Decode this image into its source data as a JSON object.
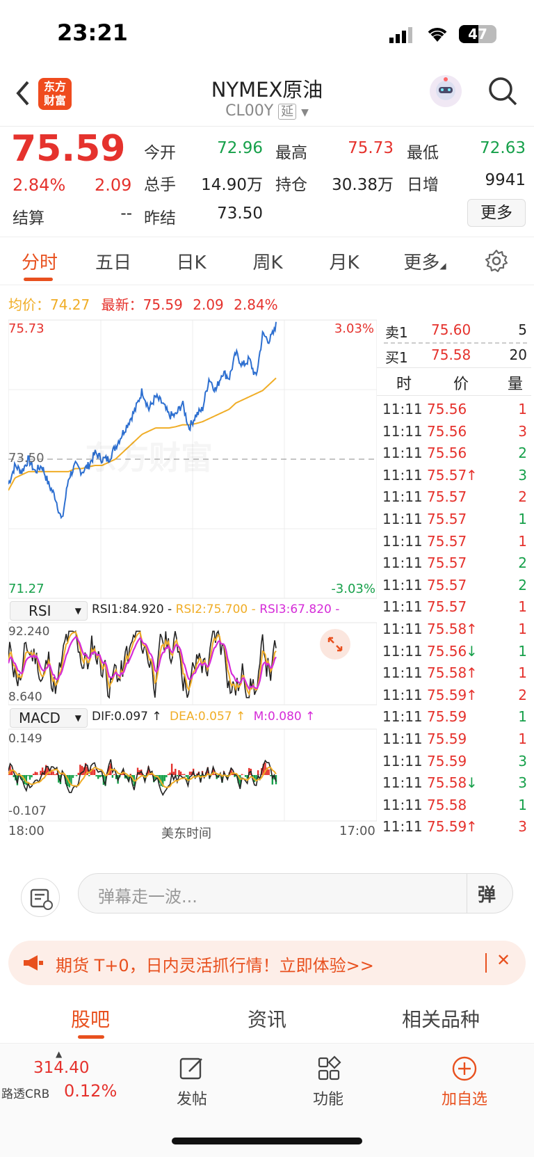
{
  "status": {
    "time": "23:21",
    "battery": "47"
  },
  "header": {
    "logo_line1": "东方",
    "logo_line2": "财富",
    "title": "NYMEX原油",
    "code": "CL00Y",
    "delay_badge": "延"
  },
  "quote": {
    "price": "75.59",
    "change_pct": "2.84%",
    "change": "2.09",
    "open_label": "今开",
    "open": "72.96",
    "high_label": "最高",
    "high": "75.73",
    "low_label": "最低",
    "low": "72.63",
    "volume_label": "总手",
    "volume": "14.90万",
    "oi_label": "持仓",
    "oi": "30.38万",
    "daily_inc_label": "日增",
    "daily_inc": "9941",
    "settle_label": "结算",
    "settle": "--",
    "prev_settle_label": "昨结",
    "prev_settle": "73.50",
    "more_btn": "更多"
  },
  "tabs": [
    "分时",
    "五日",
    "日K",
    "周K",
    "月K",
    "更多"
  ],
  "chart_info": {
    "avg_label": "均价：",
    "avg": "74.27",
    "latest_label": "最新：",
    "latest": "75.59",
    "latest_chg": "2.09",
    "latest_pct": "2.84%"
  },
  "chart_data": {
    "type": "line",
    "price_axis": {
      "top": "75.73",
      "mid": "73.50",
      "bottom": "71.27",
      "top_pct": "3.03%",
      "bottom_pct": "-3.03%",
      "ylim": [
        71.27,
        75.73
      ],
      "prev_settle": 73.5
    },
    "price_series": [
      73.1,
      73.4,
      73.3,
      73.5,
      73.3,
      73.4,
      73.1,
      72.9,
      72.5,
      73.2,
      73.4,
      73.3,
      73.4,
      73.6,
      73.5,
      73.5,
      73.7,
      73.9,
      74.1,
      74.3,
      74.6,
      74.3,
      74.5,
      74.4,
      74.2,
      74.2,
      74.4,
      74.0,
      74.2,
      74.3,
      74.8,
      74.6,
      74.9,
      74.8,
      75.2,
      75.0,
      75.1,
      74.8,
      75.5,
      75.4,
      75.6
    ],
    "avg_series": [
      73.0,
      73.2,
      73.25,
      73.3,
      73.3,
      73.3,
      73.3,
      73.3,
      73.3,
      73.3,
      73.35,
      73.35,
      73.38,
      73.4,
      73.4,
      73.45,
      73.5,
      73.6,
      73.7,
      73.8,
      73.9,
      73.95,
      74.0,
      74.0,
      74.0,
      74.02,
      74.05,
      74.05,
      74.07,
      74.1,
      74.15,
      74.2,
      74.25,
      74.3,
      74.4,
      74.45,
      74.5,
      74.55,
      74.6,
      74.7,
      74.8
    ],
    "x_start": "18:00",
    "x_mid": "美东时间",
    "x_end": "17:00",
    "rsi": {
      "label": "RSI",
      "rsi1": "RSI1:84.920 -",
      "rsi2": "RSI2:75.700 -",
      "rsi3": "RSI3:67.820 -",
      "top": "92.240",
      "bottom": "8.640"
    },
    "macd": {
      "label": "MACD",
      "dif": "DIF:0.097 ↑",
      "dea": "DEA:0.057 ↑",
      "m": "M:0.080 ↑",
      "top": "0.149",
      "bottom": "-0.107"
    }
  },
  "order_book": {
    "sell": {
      "label": "卖1",
      "price": "75.60",
      "qty": "5"
    },
    "buy": {
      "label": "买1",
      "price": "75.58",
      "qty": "20"
    },
    "headers": [
      "时",
      "价",
      "量"
    ],
    "trades": [
      {
        "t": "11:11",
        "p": "75.56",
        "q": "1",
        "c": "red"
      },
      {
        "t": "11:11",
        "p": "75.56",
        "q": "3",
        "c": "red"
      },
      {
        "t": "11:11",
        "p": "75.56",
        "q": "2",
        "c": "green"
      },
      {
        "t": "11:11",
        "p": "75.57↑",
        "q": "3",
        "c": "green"
      },
      {
        "t": "11:11",
        "p": "75.57",
        "q": "2",
        "c": "red"
      },
      {
        "t": "11:11",
        "p": "75.57",
        "q": "1",
        "c": "green"
      },
      {
        "t": "11:11",
        "p": "75.57",
        "q": "1",
        "c": "red"
      },
      {
        "t": "11:11",
        "p": "75.57",
        "q": "2",
        "c": "green"
      },
      {
        "t": "11:11",
        "p": "75.57",
        "q": "2",
        "c": "green"
      },
      {
        "t": "11:11",
        "p": "75.57",
        "q": "1",
        "c": "red"
      },
      {
        "t": "11:11",
        "p": "75.58↑",
        "q": "1",
        "c": "red"
      },
      {
        "t": "11:11",
        "p": "75.56↓",
        "q": "1",
        "c": "green"
      },
      {
        "t": "11:11",
        "p": "75.58↑",
        "q": "1",
        "c": "red"
      },
      {
        "t": "11:11",
        "p": "75.59↑",
        "q": "2",
        "c": "red"
      },
      {
        "t": "11:11",
        "p": "75.59",
        "q": "1",
        "c": "green"
      },
      {
        "t": "11:11",
        "p": "75.59",
        "q": "1",
        "c": "red"
      },
      {
        "t": "11:11",
        "p": "75.59",
        "q": "3",
        "c": "green"
      },
      {
        "t": "11:11",
        "p": "75.58↓",
        "q": "3",
        "c": "green"
      },
      {
        "t": "11:11",
        "p": "75.58",
        "q": "1",
        "c": "green"
      },
      {
        "t": "11:11",
        "p": "75.59↑",
        "q": "3",
        "c": "red"
      }
    ]
  },
  "danmaku": {
    "placeholder": "弹幕走一波...",
    "btn": "弹"
  },
  "banner": {
    "text": "期货 T+0，日内灵活抓行情！立即体验>>",
    "close": "✕"
  },
  "bottom_tabs": [
    "股吧",
    "资讯",
    "相关品种"
  ],
  "toolbar": {
    "index_value": "314.40",
    "index_name": "路透CRB",
    "index_pct": "0.12%",
    "post": "发帖",
    "func": "功能",
    "add": "加自选"
  },
  "colors": {
    "accent": "#e8501e",
    "up": "#e5322d",
    "down": "#16a04a",
    "price_line": "#2d6fd0",
    "avg_line": "#f0ad26"
  }
}
